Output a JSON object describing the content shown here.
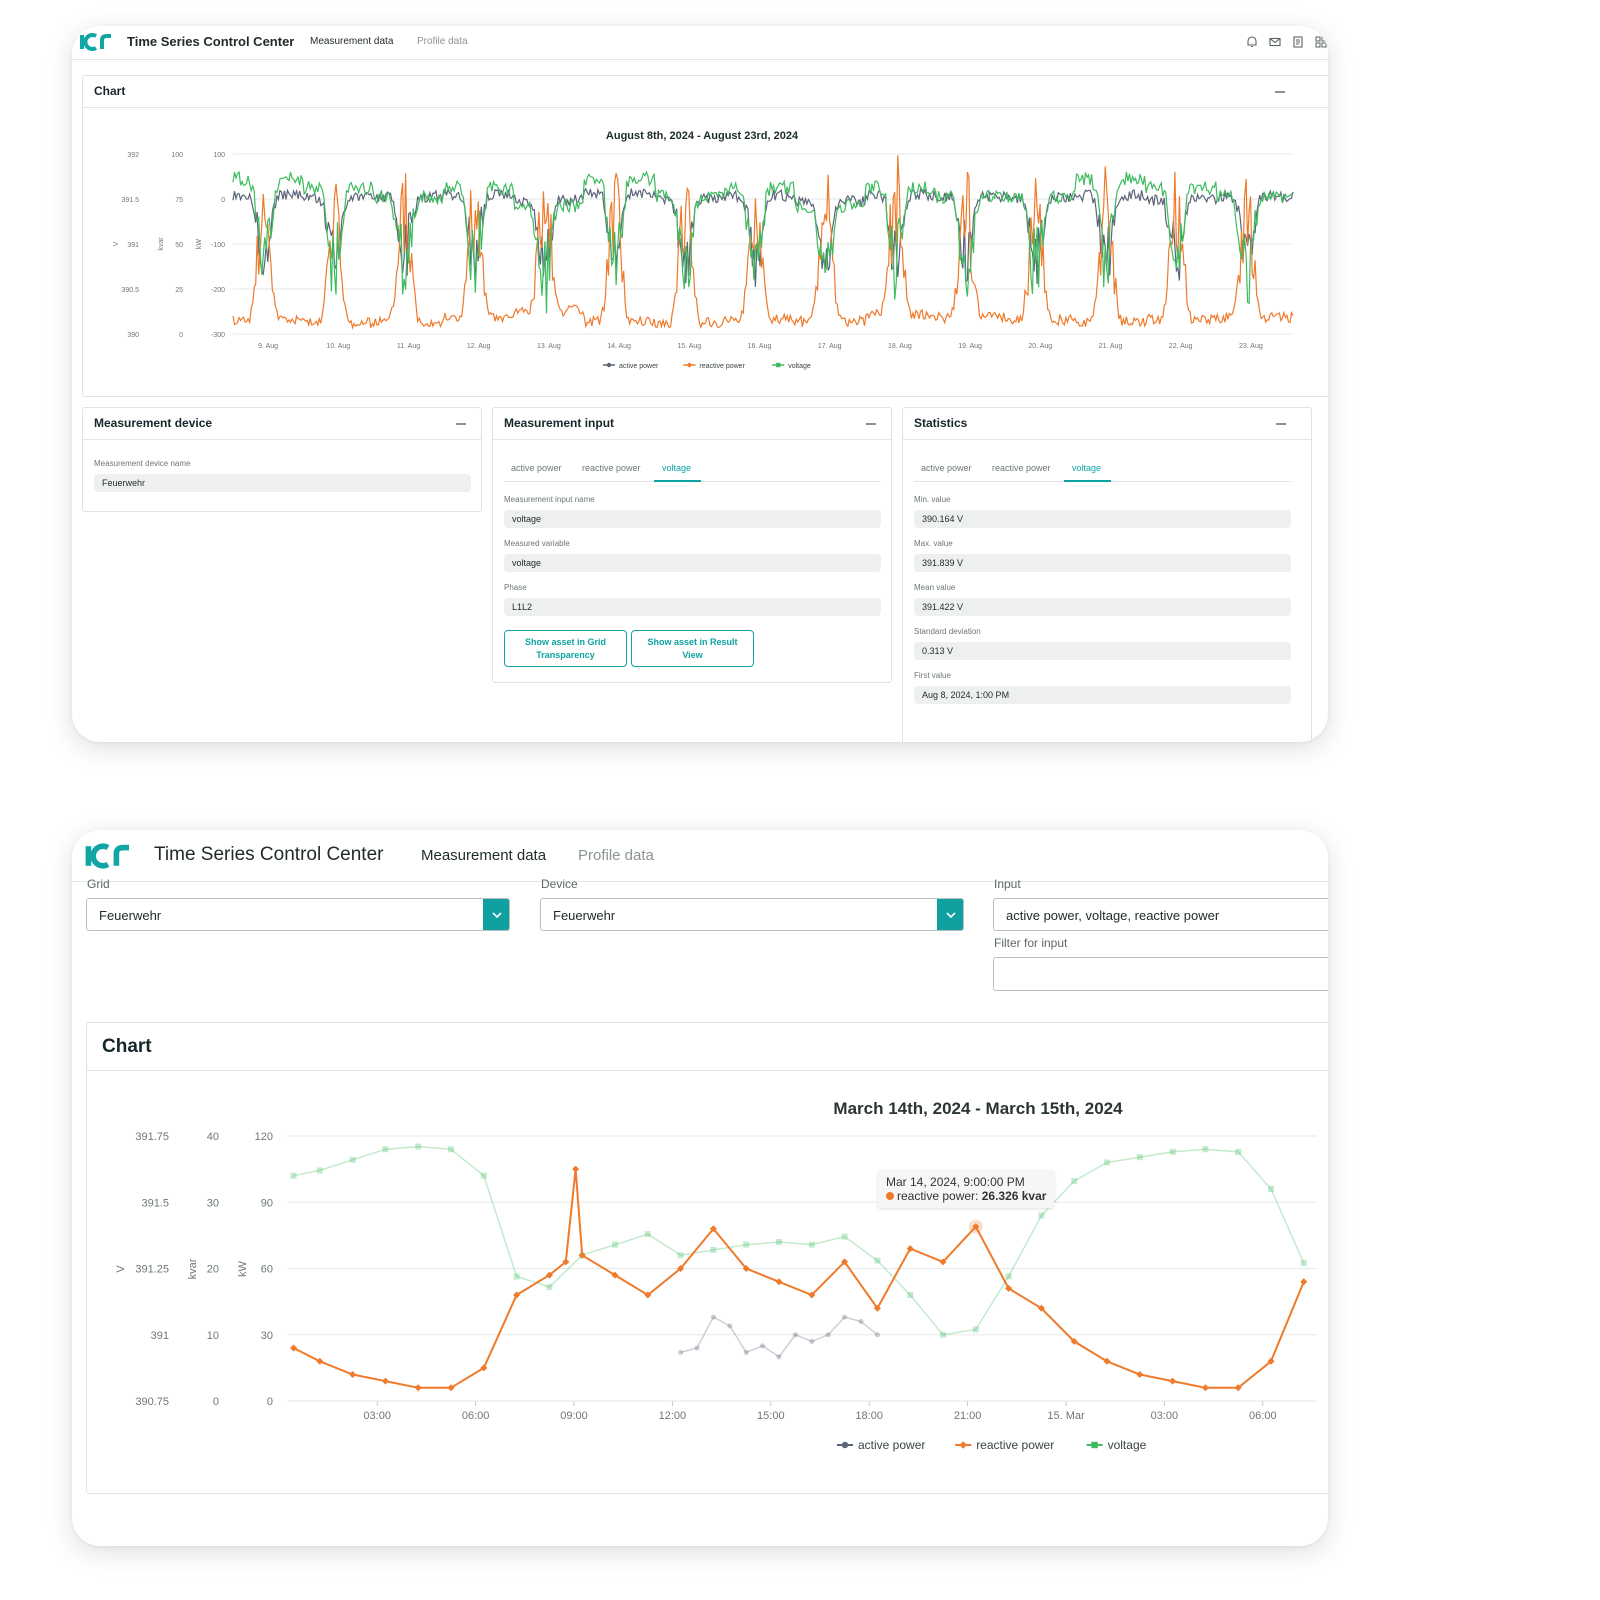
{
  "app": {
    "title": "Time Series Control Center",
    "nav": [
      "Measurement data",
      "Profile data"
    ],
    "brand_color": "#0ea3a3"
  },
  "header_icons": [
    "bell-icon",
    "mail-icon",
    "document-icon",
    "apps-icon"
  ],
  "screen1": {
    "chart_card": {
      "title": "Chart",
      "chart_title": "August 8th, 2024 - August 23rd, 2024",
      "axis_units": [
        "V",
        "kvar",
        "kW"
      ]
    },
    "device_card": {
      "title": "Measurement device",
      "field_label": "Measurement device name",
      "field_value": "Feuerwehr"
    },
    "input_card": {
      "title": "Measurement input",
      "tabs": [
        "active power",
        "reactive power",
        "voltage"
      ],
      "active_tab": "voltage",
      "fields": [
        {
          "label": "Measurement input name",
          "value": "voltage"
        },
        {
          "label": "Measured variable",
          "value": "voltage"
        },
        {
          "label": "Phase",
          "value": "L1L2"
        }
      ],
      "buttons": [
        "Show asset in Grid Transparency",
        "Show asset in Result View"
      ]
    },
    "stats_card": {
      "title": "Statistics",
      "tabs": [
        "active power",
        "reactive power",
        "voltage"
      ],
      "active_tab": "voltage",
      "fields": [
        {
          "label": "Min. value",
          "value": "390.164 V"
        },
        {
          "label": "Max. value",
          "value": "391.839 V"
        },
        {
          "label": "Mean value",
          "value": "391.422 V"
        },
        {
          "label": "Standard deviation",
          "value": "0.313 V"
        },
        {
          "label": "First value",
          "value": "Aug 8, 2024, 1:00 PM"
        }
      ]
    }
  },
  "screen2": {
    "grid": {
      "label": "Grid",
      "value": "Feuerwehr"
    },
    "device": {
      "label": "Device",
      "value": "Feuerwehr"
    },
    "input": {
      "label": "Input",
      "value": "active power, voltage, reactive power"
    },
    "filter": {
      "label": "Filter for input",
      "value": ""
    },
    "chart_card": {
      "title": "Chart",
      "chart_title": "March 14th, 2024 - March 15th, 2024",
      "axis_units": [
        "V",
        "kvar",
        "kW"
      ]
    },
    "tooltip": {
      "time": "Mar 14, 2024, 9:00:00 PM",
      "series": "reactive power:",
      "value": "26.326 kvar"
    }
  },
  "chart_data": [
    {
      "type": "line",
      "title": "August 8th, 2024 - August 23rd, 2024",
      "x": [
        "9. Aug",
        "10. Aug",
        "11. Aug",
        "12. Aug",
        "13. Aug",
        "14. Aug",
        "15. Aug",
        "16. Aug",
        "17. Aug",
        "18. Aug",
        "19. Aug",
        "20. Aug",
        "21. Aug",
        "22. Aug",
        "23. Aug"
      ],
      "y_axes": [
        {
          "unit": "V",
          "ylim": [
            390,
            392
          ],
          "ticks": [
            "392",
            "391.5",
            "391",
            "390.5",
            "390"
          ]
        },
        {
          "unit": "kvar",
          "ylim": [
            0,
            100
          ],
          "ticks": [
            "100",
            "75",
            "50",
            "25",
            "0"
          ]
        },
        {
          "unit": "kW",
          "ylim": [
            -300,
            100
          ],
          "ticks": [
            "100",
            "0",
            "-100",
            "-200",
            "-300"
          ]
        }
      ],
      "series": [
        {
          "name": "active power",
          "color": "#5b6478",
          "axis": "kW",
          "marker": "circle",
          "values": [
            20,
            15,
            18,
            22,
            10,
            25,
            12,
            20,
            8,
            22,
            18,
            15,
            20,
            10,
            18
          ]
        },
        {
          "name": "reactive power",
          "color": "#ef7a2a",
          "axis": "kvar",
          "marker": "diamond",
          "values": [
            5,
            3,
            4,
            6,
            10,
            4,
            3,
            5,
            4,
            8,
            6,
            5,
            4,
            5,
            6
          ]
        },
        {
          "name": "voltage",
          "color": "#3dbb5e",
          "axis": "V",
          "marker": "square",
          "values": [
            391.8,
            391.7,
            391.6,
            391.7,
            391.5,
            391.8,
            391.6,
            391.7,
            391.5,
            391.7,
            391.6,
            391.6,
            391.8,
            391.7,
            391.6
          ]
        }
      ],
      "legend": "bottom",
      "grid": true
    },
    {
      "type": "line",
      "title": "March 14th, 2024 - March 15th, 2024",
      "x_ticks": [
        "03:00",
        "06:00",
        "09:00",
        "12:00",
        "15:00",
        "18:00",
        "21:00",
        "15. Mar",
        "03:00",
        "06:00"
      ],
      "y_axes": [
        {
          "unit": "V",
          "ylim": [
            390.75,
            391.75
          ],
          "ticks": [
            "391.75",
            "391.5",
            "391.25",
            "391",
            "390.75"
          ]
        },
        {
          "unit": "kvar",
          "ylim": [
            0,
            40
          ],
          "ticks": [
            "40",
            "30",
            "20",
            "10",
            "0"
          ]
        },
        {
          "unit": "kW",
          "ylim": [
            0,
            120
          ],
          "ticks": [
            "120",
            "90",
            "60",
            "30",
            "0"
          ]
        }
      ],
      "series": [
        {
          "name": "active power",
          "color": "#5b6478",
          "axis": "kW",
          "marker": "circle",
          "x_hours": [
            12,
            12.5,
            13,
            13.5,
            14,
            14.5,
            15,
            15.5,
            16,
            16.5,
            17,
            17.5,
            18
          ],
          "values": [
            22,
            24,
            38,
            34,
            22,
            25,
            20,
            30,
            27,
            30,
            38,
            36,
            30
          ]
        },
        {
          "name": "reactive power",
          "color": "#ef7a2a",
          "axis": "kvar",
          "marker": "diamond",
          "x_hours": [
            0.2,
            1,
            2,
            3,
            4,
            5,
            6,
            7,
            8,
            8.5,
            8.8,
            9,
            10,
            11,
            12,
            13,
            14,
            15,
            16,
            17,
            18,
            19,
            20,
            21,
            22,
            23,
            24,
            25,
            26,
            27,
            28,
            29,
            30,
            31
          ],
          "values": [
            8,
            6,
            4,
            3,
            2,
            2,
            5,
            16,
            19,
            21,
            35,
            22,
            19,
            16,
            20,
            26,
            20,
            18,
            16,
            21,
            14,
            23,
            21,
            26.326,
            17,
            14,
            9,
            6,
            4,
            3,
            2,
            2,
            6,
            18
          ]
        },
        {
          "name": "voltage",
          "color": "#3dbb5e",
          "axis": "V",
          "marker": "square",
          "x_hours": [
            0.2,
            1,
            2,
            3,
            4,
            5,
            6,
            7,
            8,
            9,
            10,
            11,
            12,
            13,
            14,
            15,
            16,
            17,
            18,
            19,
            20,
            21,
            22,
            23,
            24,
            25,
            26,
            27,
            28,
            29,
            30,
            31
          ],
          "values": [
            391.6,
            391.62,
            391.66,
            391.7,
            391.71,
            391.7,
            391.6,
            391.22,
            391.18,
            391.3,
            391.34,
            391.38,
            391.3,
            391.32,
            391.34,
            391.35,
            391.34,
            391.37,
            391.28,
            391.15,
            391.0,
            391.02,
            391.22,
            391.45,
            391.58,
            391.65,
            391.67,
            391.69,
            391.7,
            391.69,
            391.55,
            391.27
          ]
        }
      ],
      "legend": "bottom",
      "grid": true
    }
  ]
}
